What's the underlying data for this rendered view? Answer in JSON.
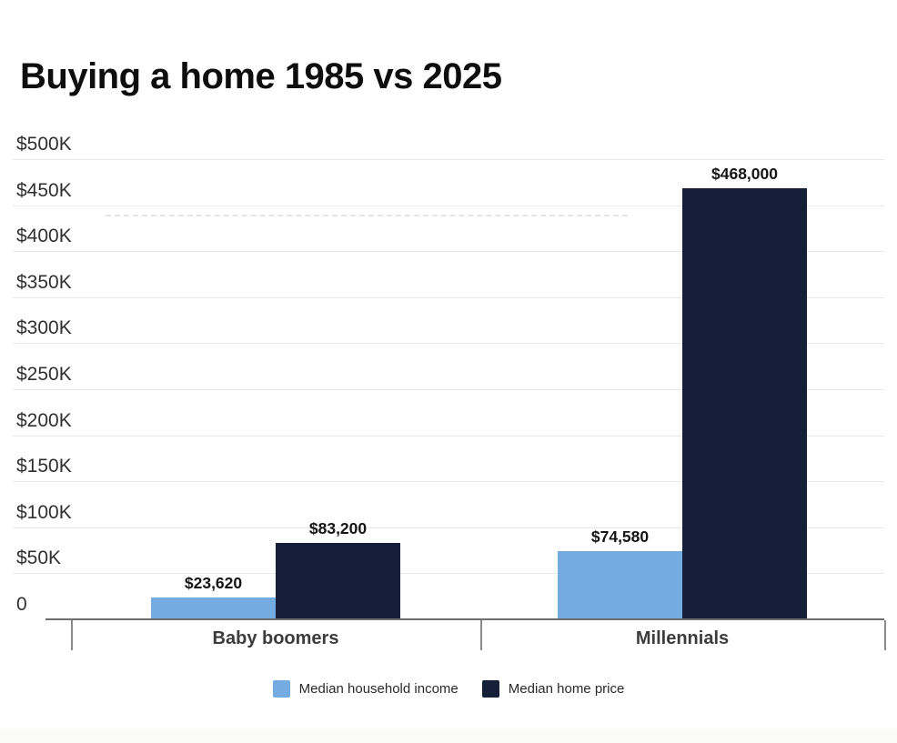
{
  "page": {
    "background_color": "#ffffff"
  },
  "chart_data": {
    "type": "bar",
    "title": "Buying a home 1985 vs 2025",
    "xlabel": "",
    "ylabel": "",
    "categories": [
      "Baby boomers",
      "Millennials"
    ],
    "series": [
      {
        "name": "Median household income",
        "color": "#74abe0",
        "values": [
          23620,
          74580
        ],
        "labels": [
          "$23,620",
          "$74,580"
        ]
      },
      {
        "name": "Median home price",
        "color": "#152038",
        "values": [
          83200,
          468000
        ],
        "labels": [
          "$83,200",
          "$468,000"
        ]
      }
    ],
    "ylim": [
      0,
      500000
    ],
    "yticks": [
      {
        "value": 0,
        "label": "0"
      },
      {
        "value": 50000,
        "label": "$50K"
      },
      {
        "value": 100000,
        "label": "$100K"
      },
      {
        "value": 150000,
        "label": "$150K"
      },
      {
        "value": 200000,
        "label": "$200K"
      },
      {
        "value": 250000,
        "label": "$250K"
      },
      {
        "value": 300000,
        "label": "$300K"
      },
      {
        "value": 350000,
        "label": "$350K"
      },
      {
        "value": 400000,
        "label": "$400K"
      },
      {
        "value": 450000,
        "label": "$450K"
      },
      {
        "value": 500000,
        "label": "$500K"
      }
    ],
    "grid": true,
    "legend_position": "bottom"
  }
}
